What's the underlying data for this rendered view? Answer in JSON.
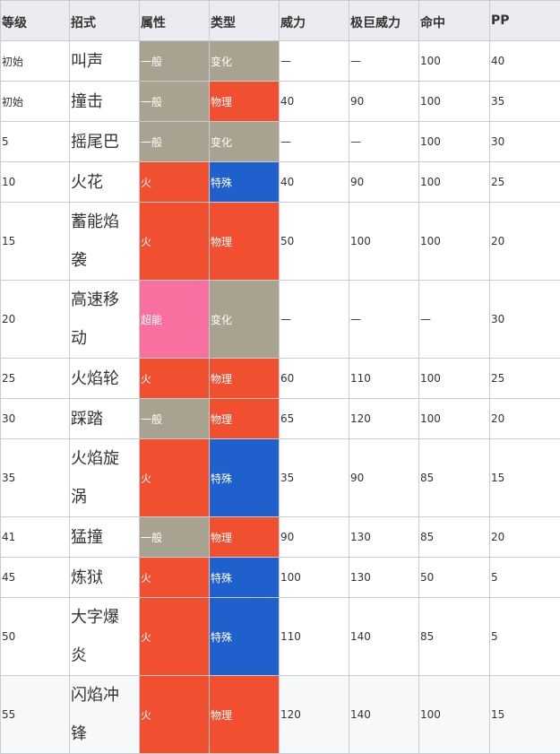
{
  "headers": {
    "level": "等级",
    "move": "招式",
    "type": "属性",
    "category": "类型",
    "power": "威力",
    "gmax_power": "极巨威力",
    "accuracy": "命中",
    "pp": "PP"
  },
  "colors": {
    "type_normal": "#a8a290",
    "type_fire": "#f05030",
    "type_psychic": "#f870a0",
    "category_status": "#a8a290",
    "category_physical": "#f05030",
    "category_special": "#2060cc",
    "header_bg": "#eaecf0",
    "border": "#c8ccd1"
  },
  "rows": [
    {
      "level": "初始",
      "move": "叫声",
      "type": "一般",
      "category": "变化",
      "power": "—",
      "gmax_power": "—",
      "accuracy": "100",
      "pp": "40"
    },
    {
      "level": "初始",
      "move": "撞击",
      "type": "一般",
      "category": "物理",
      "power": "40",
      "gmax_power": "90",
      "accuracy": "100",
      "pp": "35"
    },
    {
      "level": "5",
      "move": "摇尾巴",
      "type": "一般",
      "category": "变化",
      "power": "—",
      "gmax_power": "—",
      "accuracy": "100",
      "pp": "30"
    },
    {
      "level": "10",
      "move": "火花",
      "type": "火",
      "category": "特殊",
      "power": "40",
      "gmax_power": "90",
      "accuracy": "100",
      "pp": "25"
    },
    {
      "level": "15",
      "move_lines": [
        "蓄能焰",
        "袭"
      ],
      "type": "火",
      "category": "物理",
      "power": "50",
      "gmax_power": "100",
      "accuracy": "100",
      "pp": "20"
    },
    {
      "level": "20",
      "move_lines": [
        "高速移",
        "动"
      ],
      "type": "超能",
      "category": "变化",
      "power": "—",
      "gmax_power": "—",
      "accuracy": "—",
      "pp": "30"
    },
    {
      "level": "25",
      "move": "火焰轮",
      "type": "火",
      "category": "物理",
      "power": "60",
      "gmax_power": "110",
      "accuracy": "100",
      "pp": "25"
    },
    {
      "level": "30",
      "move": "踩踏",
      "type": "一般",
      "category": "物理",
      "power": "65",
      "gmax_power": "120",
      "accuracy": "100",
      "pp": "20"
    },
    {
      "level": "35",
      "move_lines": [
        "火焰旋",
        "涡"
      ],
      "type": "火",
      "category": "特殊",
      "power": "35",
      "gmax_power": "90",
      "accuracy": "85",
      "pp": "15"
    },
    {
      "level": "41",
      "move": "猛撞",
      "type": "一般",
      "category": "物理",
      "power": "90",
      "gmax_power": "130",
      "accuracy": "85",
      "pp": "20"
    },
    {
      "level": "45",
      "move": "炼狱",
      "type": "火",
      "category": "特殊",
      "power": "100",
      "gmax_power": "130",
      "accuracy": "50",
      "pp": "5"
    },
    {
      "level": "50",
      "move_lines": [
        "大字爆",
        "炎"
      ],
      "type": "火",
      "category": "特殊",
      "power": "110",
      "gmax_power": "140",
      "accuracy": "85",
      "pp": "5"
    },
    {
      "level": "55",
      "move_lines": [
        "闪焰冲",
        "锋"
      ],
      "type": "火",
      "category": "物理",
      "power": "120",
      "gmax_power": "140",
      "accuracy": "100",
      "pp": "15"
    }
  ]
}
